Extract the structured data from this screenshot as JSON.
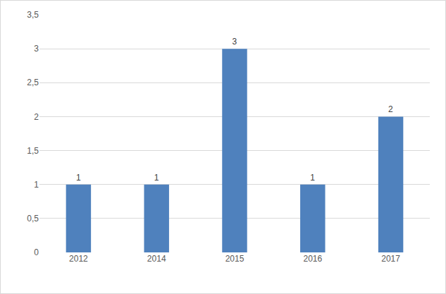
{
  "chart_data": {
    "type": "bar",
    "categories": [
      "2012",
      "2014",
      "2015",
      "2016",
      "2017"
    ],
    "values": [
      1,
      1,
      3,
      1,
      2
    ],
    "color": "#4f81bd",
    "ylim": [
      0,
      3.5
    ],
    "yticks": [
      0,
      {
        "value": 0.5,
        "label": "0,5"
      },
      1,
      {
        "value": 1.5,
        "label": "1,5"
      },
      2,
      {
        "value": 2.5,
        "label": "2,5"
      },
      3,
      {
        "value": 3.5,
        "label": "3,5"
      }
    ],
    "grid": true,
    "data_labels": true
  }
}
